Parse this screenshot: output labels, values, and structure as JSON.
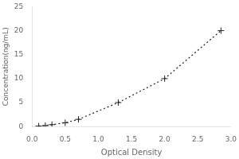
{
  "chart_data": {
    "type": "line",
    "x": [
      0.1,
      0.2,
      0.3,
      0.5,
      0.7,
      1.3,
      2.0,
      2.85
    ],
    "values": [
      0.1,
      0.2,
      0.4,
      0.8,
      1.5,
      5.0,
      10.0,
      20.0
    ],
    "xlabel": "Optical Density",
    "ylabel": "Concentration(ng/mL)",
    "xlim": [
      0,
      3.0
    ],
    "ylim": [
      0,
      25
    ],
    "xticks": [
      {
        "value": 0,
        "label": "0.0"
      },
      0.5,
      {
        "value": 1,
        "label": "1.0"
      },
      1.5,
      {
        "value": 2,
        "label": "2.0"
      },
      2.5,
      {
        "value": 3,
        "label": "3.0"
      }
    ],
    "yticks": [
      0,
      5,
      10,
      15,
      20,
      25
    ],
    "color": "#222222",
    "marker": "plus",
    "line_style": "dotted",
    "grid": false
  }
}
